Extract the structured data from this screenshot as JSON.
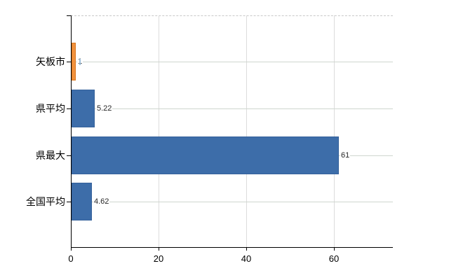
{
  "chart_data": {
    "type": "bar",
    "orientation": "horizontal",
    "title": "",
    "xlabel": "",
    "ylabel": "",
    "categories": [
      "矢板市",
      "県平均",
      "県最大",
      "全国平均"
    ],
    "values": [
      1,
      5.22,
      61,
      4.62
    ],
    "value_labels": [
      "1",
      "5.22",
      "61",
      "4.62"
    ],
    "bar_colors": [
      "#f0923e",
      "#3d6da9",
      "#3d6da9",
      "#3d6da9"
    ],
    "bar_border_colors": [
      "#d9771f",
      "#35619b",
      "#35619b",
      "#35619b"
    ],
    "x_ticks": [
      0,
      20,
      40,
      60
    ],
    "x_tick_labels": [
      "0",
      "20",
      "40",
      "60"
    ],
    "xlim": [
      0,
      73.4
    ],
    "grid": true,
    "legend": false,
    "highlight_color": "#f0923e",
    "series_color": "#3d6da9"
  }
}
